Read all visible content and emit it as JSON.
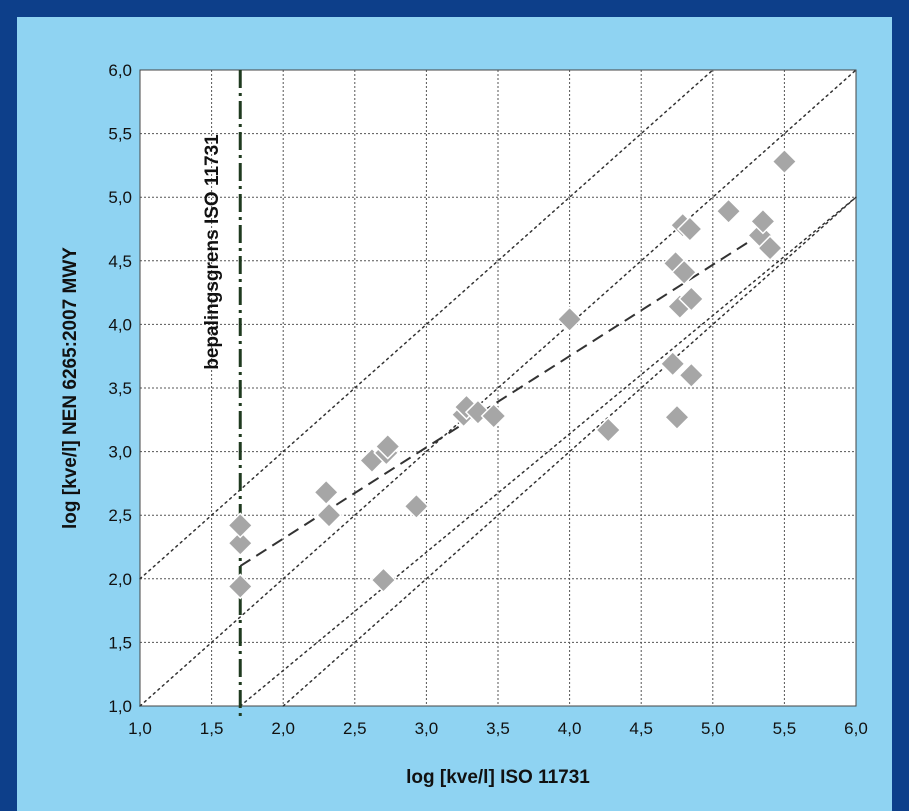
{
  "colors": {
    "border": "#0d3f8a",
    "panel_background": "#8fd3f2",
    "plot_background": "#ffffff",
    "marker_fill": "#a6a6a6",
    "marker_stroke": "#ffffff"
  },
  "chart_data": {
    "type": "scatter",
    "title": "",
    "xlabel": "log [kve/l] ISO 11731",
    "ylabel": "log [kve/l] NEN 6265:2007 MWY",
    "xlim": [
      1.0,
      6.0
    ],
    "ylim": [
      1.0,
      6.0
    ],
    "x_ticks": [
      1.0,
      1.5,
      2.0,
      2.5,
      3.0,
      3.5,
      4.0,
      4.5,
      5.0,
      5.5,
      6.0
    ],
    "y_ticks": [
      1.0,
      1.5,
      2.0,
      2.5,
      3.0,
      3.5,
      4.0,
      4.5,
      5.0,
      5.5,
      6.0
    ],
    "x_tick_labels": [
      "1,0",
      "1,5",
      "2,0",
      "2,5",
      "3,0",
      "3,5",
      "4,0",
      "4,5",
      "5,0",
      "5,5",
      "6,0"
    ],
    "y_tick_labels": [
      "1,0",
      "1,5",
      "2,0",
      "2,5",
      "3,0",
      "3,5",
      "4,0",
      "4,5",
      "5,0",
      "5,5",
      "6,0"
    ],
    "grid": true,
    "marker": "diamond",
    "points": [
      {
        "x": 1.7,
        "y": 1.94
      },
      {
        "x": 1.7,
        "y": 2.28
      },
      {
        "x": 1.7,
        "y": 2.42
      },
      {
        "x": 2.3,
        "y": 2.68
      },
      {
        "x": 2.32,
        "y": 2.5
      },
      {
        "x": 2.62,
        "y": 2.93
      },
      {
        "x": 2.7,
        "y": 1.99
      },
      {
        "x": 2.72,
        "y": 2.99
      },
      {
        "x": 2.73,
        "y": 3.04
      },
      {
        "x": 2.93,
        "y": 2.57
      },
      {
        "x": 3.26,
        "y": 3.29
      },
      {
        "x": 3.28,
        "y": 3.35
      },
      {
        "x": 3.36,
        "y": 3.31
      },
      {
        "x": 3.47,
        "y": 3.28
      },
      {
        "x": 4.0,
        "y": 4.04
      },
      {
        "x": 4.27,
        "y": 3.17
      },
      {
        "x": 4.72,
        "y": 3.69
      },
      {
        "x": 4.74,
        "y": 4.48
      },
      {
        "x": 4.75,
        "y": 3.27
      },
      {
        "x": 4.77,
        "y": 4.14
      },
      {
        "x": 4.79,
        "y": 4.78
      },
      {
        "x": 4.8,
        "y": 4.41
      },
      {
        "x": 4.84,
        "y": 4.75
      },
      {
        "x": 4.85,
        "y": 3.6
      },
      {
        "x": 4.85,
        "y": 4.2
      },
      {
        "x": 5.11,
        "y": 4.89
      },
      {
        "x": 5.33,
        "y": 4.7
      },
      {
        "x": 5.35,
        "y": 4.81
      },
      {
        "x": 5.4,
        "y": 4.6
      },
      {
        "x": 5.5,
        "y": 5.28
      }
    ],
    "reference_lines": [
      {
        "style": "dotted",
        "x1": 1.0,
        "y1": 2.0,
        "x2": 5.0,
        "y2": 6.0
      },
      {
        "style": "dotted",
        "x1": 1.0,
        "y1": 1.0,
        "x2": 6.0,
        "y2": 6.0
      },
      {
        "style": "dotted",
        "x1": 1.7,
        "y1": 1.0,
        "x2": 6.0,
        "y2": 5.0
      },
      {
        "style": "dotted",
        "x1": 2.0,
        "y1": 1.0,
        "x2": 6.0,
        "y2": 5.0
      }
    ],
    "trend_line": {
      "style": "dashed",
      "x1": 1.7,
      "y1": 2.1,
      "x2": 5.35,
      "y2": 4.72
    },
    "detection_limit": {
      "x": 1.7,
      "style": "dash-dot",
      "label": "bepalingsgrens ISO 11731"
    }
  }
}
